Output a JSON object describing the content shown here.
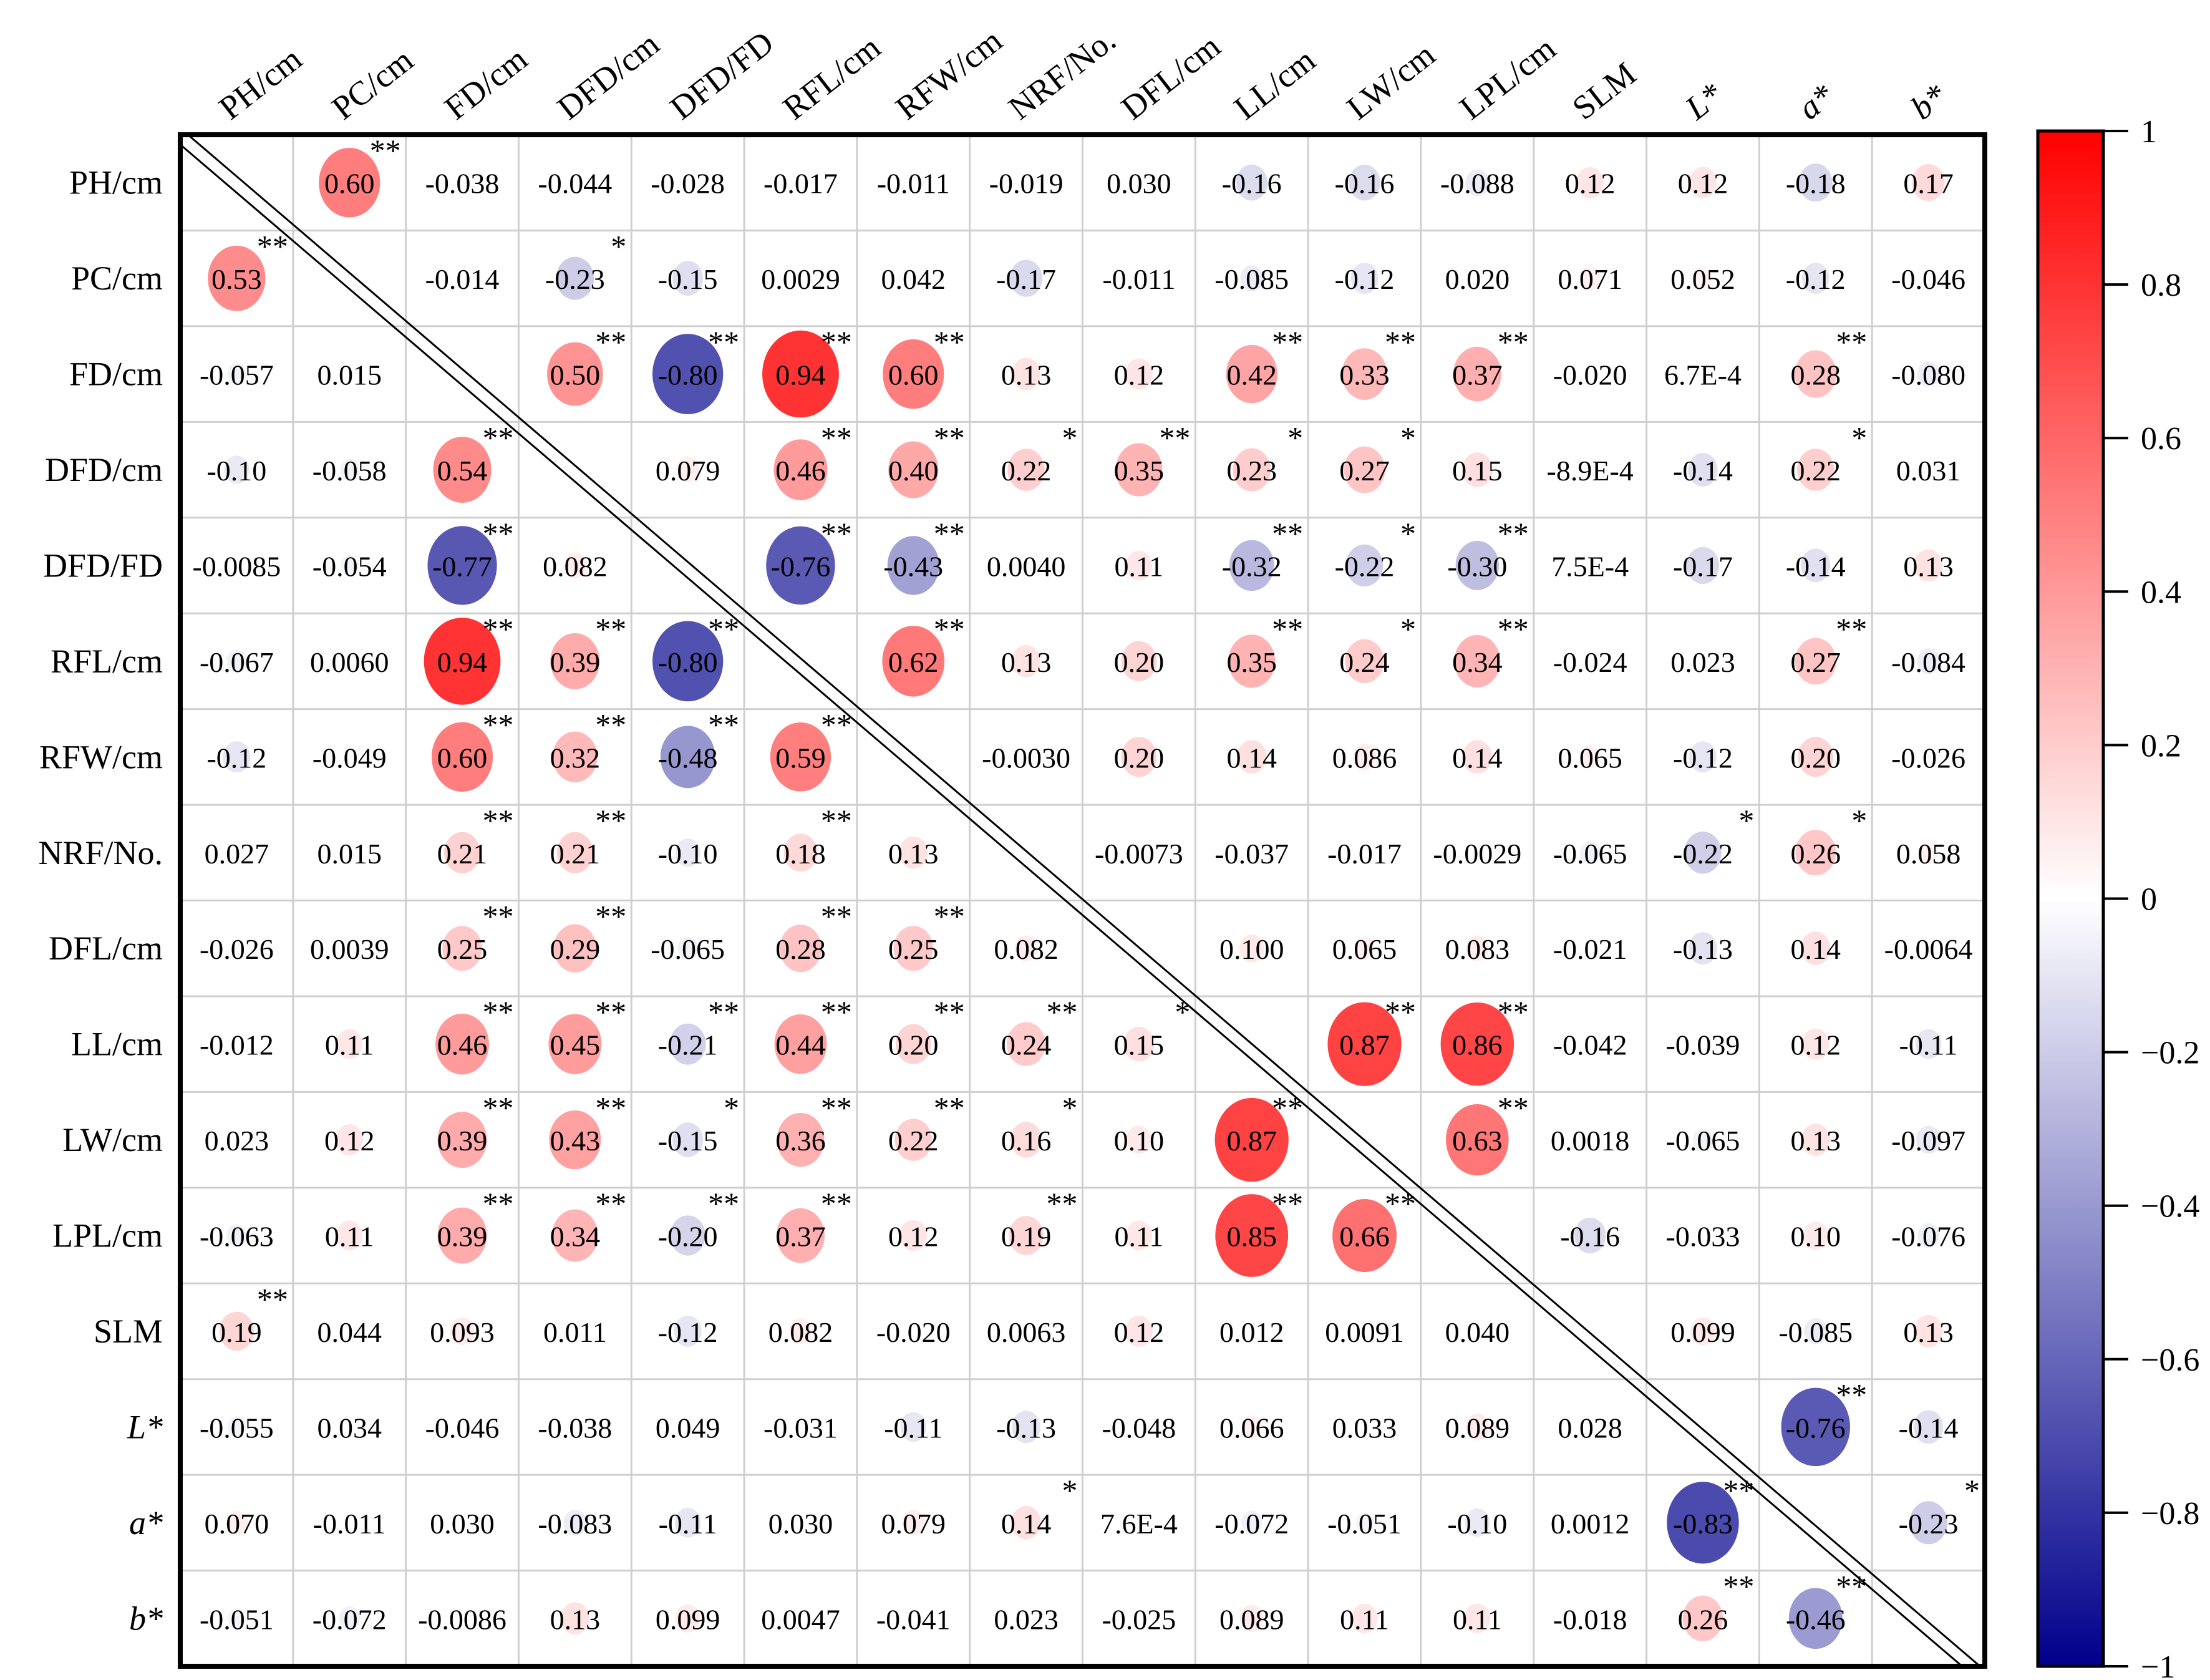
{
  "chart_data": {
    "type": "heatmap",
    "subtype": "correlation-matrix-circles",
    "labels": [
      "PH/cm",
      "PC/cm",
      "FD/cm",
      "DFD/cm",
      "DFD/FD",
      "RFL/cm",
      "RFW/cm",
      "NRF/No.",
      "DFL/cm",
      "LL/cm",
      "LW/cm",
      "LPL/cm",
      "SLM",
      "L*",
      "a*",
      "b*"
    ],
    "italic_labels": [
      "L*",
      "a*",
      "b*"
    ],
    "values": [
      [
        null,
        "0.60",
        "-0.038",
        "-0.044",
        "-0.028",
        "-0.017",
        "-0.011",
        "-0.019",
        "0.030",
        "-0.16",
        "-0.16",
        "-0.088",
        "0.12",
        "0.12",
        "-0.18",
        "0.17"
      ],
      [
        "0.53",
        null,
        "-0.014",
        "-0.23",
        "-0.15",
        "0.0029",
        "0.042",
        "-0.17",
        "-0.011",
        "-0.085",
        "-0.12",
        "0.020",
        "0.071",
        "0.052",
        "-0.12",
        "-0.046"
      ],
      [
        "-0.057",
        "0.015",
        null,
        "0.50",
        "-0.80",
        "0.94",
        "0.60",
        "0.13",
        "0.12",
        "0.42",
        "0.33",
        "0.37",
        "-0.020",
        "6.7E-4",
        "0.28",
        "-0.080"
      ],
      [
        "-0.10",
        "-0.058",
        "0.54",
        null,
        "0.079",
        "0.46",
        "0.40",
        "0.22",
        "0.35",
        "0.23",
        "0.27",
        "0.15",
        "-8.9E-4",
        "-0.14",
        "0.22",
        "0.031"
      ],
      [
        "-0.0085",
        "-0.054",
        "-0.77",
        "0.082",
        null,
        "-0.76",
        "-0.43",
        "0.0040",
        "0.11",
        "-0.32",
        "-0.22",
        "-0.30",
        "7.5E-4",
        "-0.17",
        "-0.14",
        "0.13"
      ],
      [
        "-0.067",
        "0.0060",
        "0.94",
        "0.39",
        "-0.80",
        null,
        "0.62",
        "0.13",
        "0.20",
        "0.35",
        "0.24",
        "0.34",
        "-0.024",
        "0.023",
        "0.27",
        "-0.084"
      ],
      [
        "-0.12",
        "-0.049",
        "0.60",
        "0.32",
        "-0.48",
        "0.59",
        null,
        "-0.0030",
        "0.20",
        "0.14",
        "0.086",
        "0.14",
        "0.065",
        "-0.12",
        "0.20",
        "-0.026"
      ],
      [
        "0.027",
        "0.015",
        "0.21",
        "0.21",
        "-0.10",
        "0.18",
        "0.13",
        null,
        "-0.0073",
        "-0.037",
        "-0.017",
        "-0.0029",
        "-0.065",
        "-0.22",
        "0.26",
        "0.058"
      ],
      [
        "-0.026",
        "0.0039",
        "0.25",
        "0.29",
        "-0.065",
        "0.28",
        "0.25",
        "0.082",
        null,
        "0.100",
        "0.065",
        "0.083",
        "-0.021",
        "-0.13",
        "0.14",
        "-0.0064"
      ],
      [
        "-0.012",
        "0.11",
        "0.46",
        "0.45",
        "-0.21",
        "0.44",
        "0.20",
        "0.24",
        "0.15",
        null,
        "0.87",
        "0.86",
        "-0.042",
        "-0.039",
        "0.12",
        "-0.11"
      ],
      [
        "0.023",
        "0.12",
        "0.39",
        "0.43",
        "-0.15",
        "0.36",
        "0.22",
        "0.16",
        "0.10",
        "0.87",
        null,
        "0.63",
        "0.0018",
        "-0.065",
        "0.13",
        "-0.097"
      ],
      [
        "-0.063",
        "0.11",
        "0.39",
        "0.34",
        "-0.20",
        "0.37",
        "0.12",
        "0.19",
        "0.11",
        "0.85",
        "0.66",
        null,
        "-0.16",
        "-0.033",
        "0.10",
        "-0.076"
      ],
      [
        "0.19",
        "0.044",
        "0.093",
        "0.011",
        "-0.12",
        "0.082",
        "-0.020",
        "0.0063",
        "0.12",
        "0.012",
        "0.0091",
        "0.040",
        null,
        "0.099",
        "-0.085",
        "0.13"
      ],
      [
        "-0.055",
        "0.034",
        "-0.046",
        "-0.038",
        "0.049",
        "-0.031",
        "-0.11",
        "-0.13",
        "-0.048",
        "0.066",
        "0.033",
        "0.089",
        "0.028",
        null,
        "-0.76",
        "-0.14"
      ],
      [
        "0.070",
        "-0.011",
        "0.030",
        "-0.083",
        "-0.11",
        "0.030",
        "0.079",
        "0.14",
        "7.6E-4",
        "-0.072",
        "-0.051",
        "-0.10",
        "0.0012",
        "-0.83",
        null,
        "-0.23"
      ],
      [
        "-0.051",
        "-0.072",
        "-0.0086",
        "0.13",
        "0.099",
        "0.0047",
        "-0.041",
        "0.023",
        "-0.025",
        "0.089",
        "0.11",
        "0.11",
        "-0.018",
        "0.26",
        "-0.46",
        null
      ]
    ],
    "significance": [
      [
        "",
        "**",
        "",
        "",
        "",
        "",
        "",
        "",
        "",
        "",
        "",
        "",
        "",
        "",
        "",
        ""
      ],
      [
        "**",
        "",
        "",
        "*",
        "",
        "",
        "",
        "",
        "",
        "",
        "",
        "",
        "",
        "",
        "",
        ""
      ],
      [
        "",
        "",
        "",
        "**",
        "**",
        "**",
        "**",
        "",
        "",
        "**",
        "**",
        "**",
        "",
        "",
        "**",
        ""
      ],
      [
        "",
        "",
        "**",
        "",
        "",
        "**",
        "**",
        "*",
        "**",
        "*",
        "*",
        "",
        "",
        "",
        "*",
        ""
      ],
      [
        "",
        "",
        "**",
        "",
        "",
        "**",
        "**",
        "",
        "",
        "**",
        "*",
        "**",
        "",
        "",
        "",
        ""
      ],
      [
        "",
        "",
        "**",
        "**",
        "**",
        "",
        "**",
        "",
        "",
        "**",
        "*",
        "**",
        "",
        "",
        "**",
        ""
      ],
      [
        "",
        "",
        "**",
        "**",
        "**",
        "**",
        "",
        "",
        "",
        "",
        "",
        "",
        "",
        "",
        "",
        ""
      ],
      [
        "",
        "",
        "**",
        "**",
        "",
        "**",
        "",
        "",
        "",
        "",
        "",
        "",
        "",
        "*",
        "*",
        ""
      ],
      [
        "",
        "",
        "**",
        "**",
        "",
        "**",
        "**",
        "",
        "",
        "",
        "",
        "",
        "",
        "",
        "",
        ""
      ],
      [
        "",
        "",
        "**",
        "**",
        "**",
        "**",
        "**",
        "**",
        "*",
        "",
        "**",
        "**",
        "",
        "",
        "",
        ""
      ],
      [
        "",
        "",
        "**",
        "**",
        "*",
        "**",
        "**",
        "*",
        "",
        "**",
        "",
        "**",
        "",
        "",
        "",
        ""
      ],
      [
        "",
        "",
        "**",
        "**",
        "**",
        "**",
        "",
        "**",
        "",
        "**",
        "**",
        "",
        "",
        "",
        "",
        ""
      ],
      [
        "**",
        "",
        "",
        "",
        "",
        "",
        "",
        "",
        "",
        "",
        "",
        "",
        "",
        "",
        "",
        ""
      ],
      [
        "",
        "",
        "",
        "",
        "",
        "",
        "",
        "",
        "",
        "",
        "",
        "",
        "",
        "",
        "**",
        ""
      ],
      [
        "",
        "",
        "",
        "",
        "",
        "",
        "",
        "*",
        "",
        "",
        "",
        "",
        "",
        "**",
        "",
        "*"
      ],
      [
        "",
        "",
        "",
        "",
        "",
        "",
        "",
        "",
        "",
        "",
        "",
        "",
        "",
        "**",
        "**",
        ""
      ]
    ],
    "colorbar": {
      "range": [
        -1,
        1
      ],
      "ticks": [
        "1",
        "0.8",
        "0.6",
        "0.4",
        "0.2",
        "0",
        "−0.2",
        "−0.4",
        "−0.6",
        "−0.8",
        "−1"
      ],
      "tick_values": [
        1,
        0.8,
        0.6,
        0.4,
        0.2,
        0,
        -0.2,
        -0.4,
        -0.6,
        -0.8,
        -1
      ],
      "color_positive": "#ff0000",
      "color_zero": "#ffffff",
      "color_negative": "#00008b"
    },
    "grid": true,
    "legend": "right"
  }
}
